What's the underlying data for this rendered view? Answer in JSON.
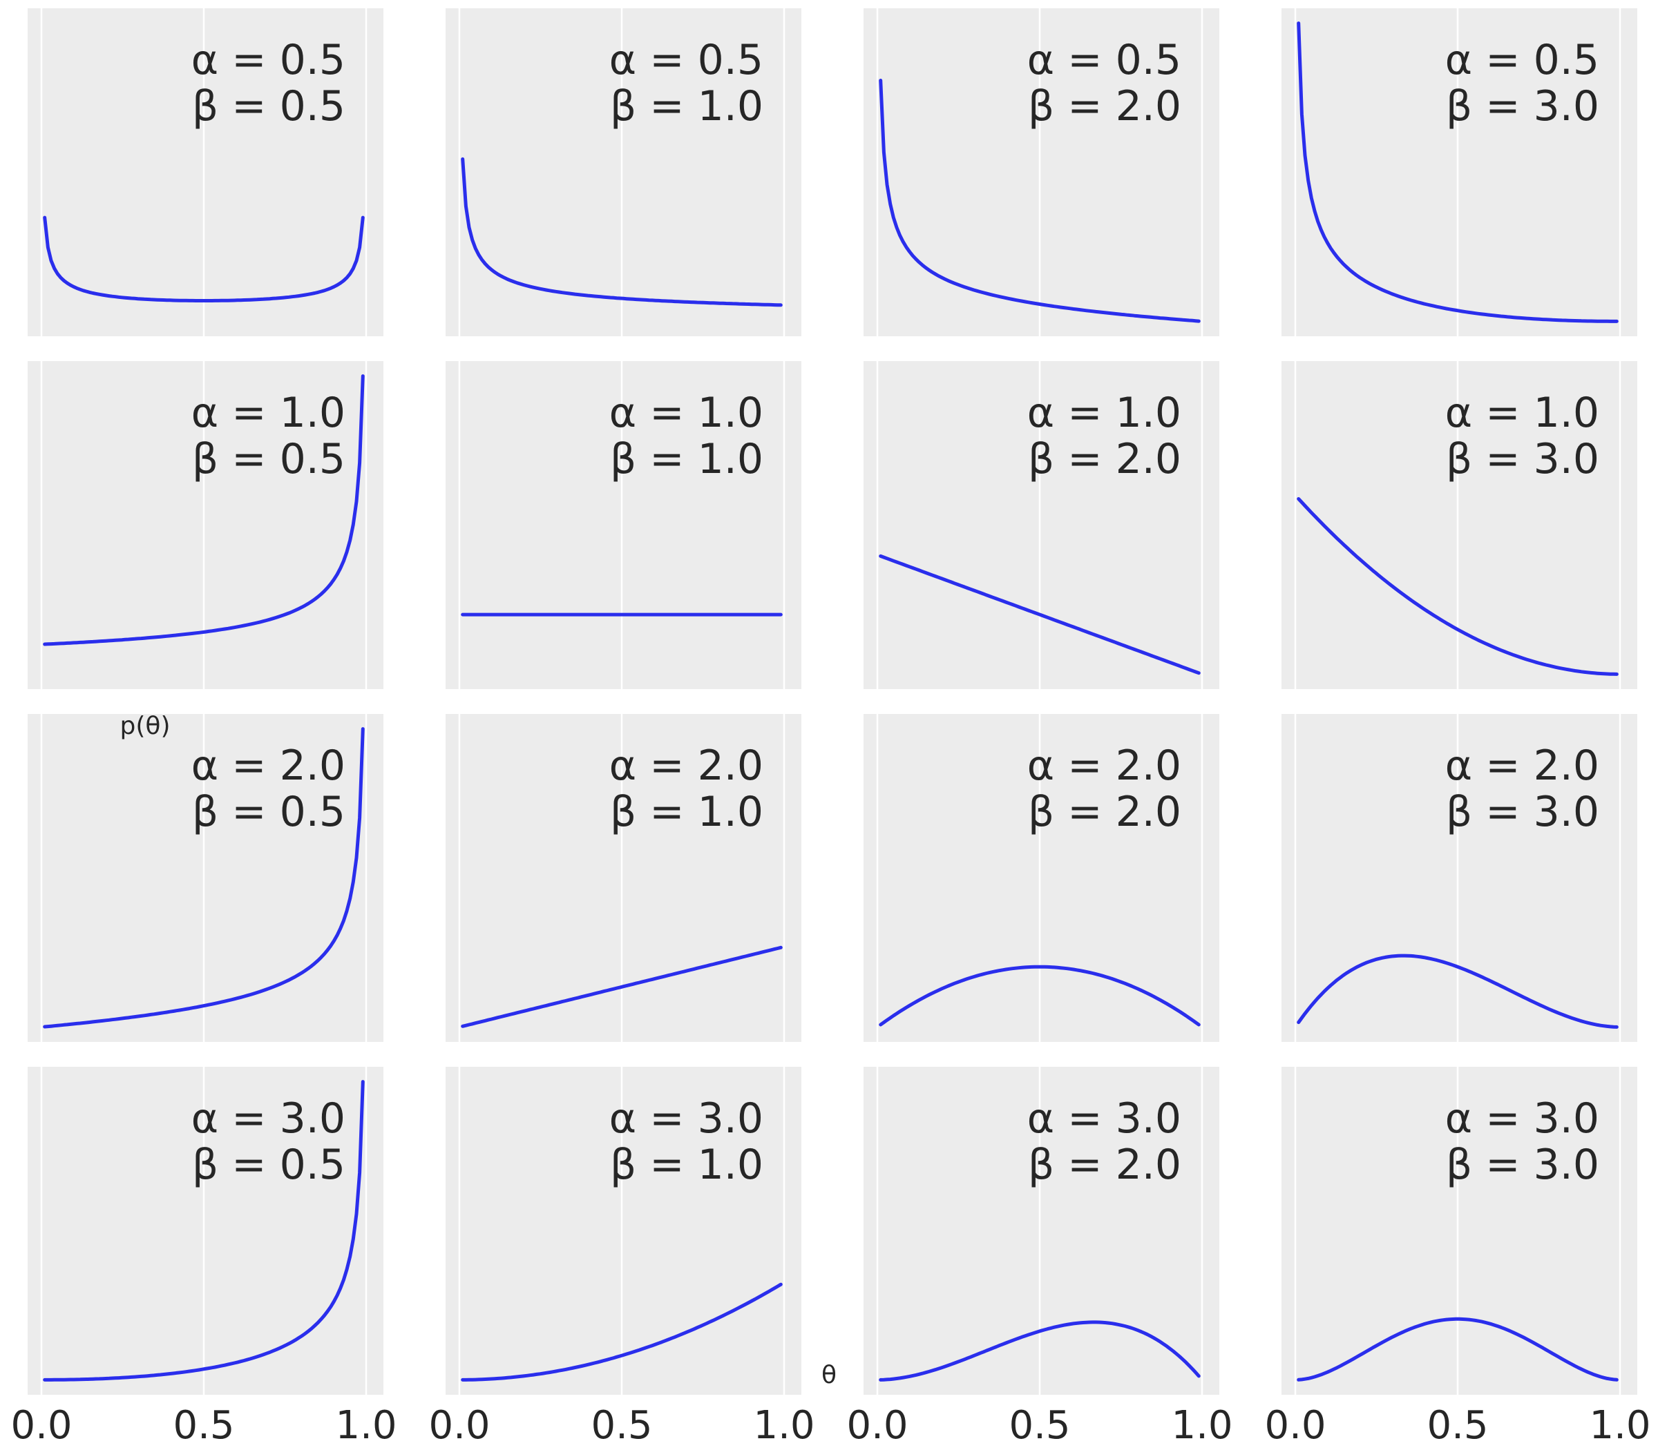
{
  "chart_data": {
    "type": "line",
    "layout": "4x4 small multiples",
    "xlabel": "θ",
    "ylabel": "p(θ)",
    "xlim": [
      0,
      1
    ],
    "x_ticks": [
      "0.0",
      "0.5",
      "1.0"
    ],
    "grid": true,
    "y_ticks_shown": false,
    "line_color": "#2a2eec",
    "panel_bg": "#ececec",
    "alphas": [
      "0.5",
      "1.0",
      "2.0",
      "3.0"
    ],
    "betas": [
      "0.5",
      "1.0",
      "2.0",
      "3.0"
    ],
    "distribution": "beta pdf",
    "panels": [
      {
        "alpha": 0.5,
        "beta": 0.5,
        "line1": "α = 0.5",
        "line2": "β = 0.5"
      },
      {
        "alpha": 0.5,
        "beta": 1.0,
        "line1": "α = 0.5",
        "line2": "β = 1.0"
      },
      {
        "alpha": 0.5,
        "beta": 2.0,
        "line1": "α = 0.5",
        "line2": "β = 2.0"
      },
      {
        "alpha": 0.5,
        "beta": 3.0,
        "line1": "α = 0.5",
        "line2": "β = 3.0"
      },
      {
        "alpha": 1.0,
        "beta": 0.5,
        "line1": "α = 1.0",
        "line2": "β = 0.5"
      },
      {
        "alpha": 1.0,
        "beta": 1.0,
        "line1": "α = 1.0",
        "line2": "β = 1.0"
      },
      {
        "alpha": 1.0,
        "beta": 2.0,
        "line1": "α = 1.0",
        "line2": "β = 2.0"
      },
      {
        "alpha": 1.0,
        "beta": 3.0,
        "line1": "α = 1.0",
        "line2": "β = 3.0"
      },
      {
        "alpha": 2.0,
        "beta": 0.5,
        "line1": "α = 2.0",
        "line2": "β = 0.5"
      },
      {
        "alpha": 2.0,
        "beta": 1.0,
        "line1": "α = 2.0",
        "line2": "β = 1.0"
      },
      {
        "alpha": 2.0,
        "beta": 2.0,
        "line1": "α = 2.0",
        "line2": "β = 2.0"
      },
      {
        "alpha": 2.0,
        "beta": 3.0,
        "line1": "α = 2.0",
        "line2": "β = 3.0"
      },
      {
        "alpha": 3.0,
        "beta": 0.5,
        "line1": "α = 3.0",
        "line2": "β = 0.5"
      },
      {
        "alpha": 3.0,
        "beta": 1.0,
        "line1": "α = 3.0",
        "line2": "β = 1.0"
      },
      {
        "alpha": 3.0,
        "beta": 2.0,
        "line1": "α = 3.0",
        "line2": "β = 2.0"
      },
      {
        "alpha": 3.0,
        "beta": 3.0,
        "line1": "α = 3.0",
        "line2": "β = 3.0"
      }
    ]
  }
}
